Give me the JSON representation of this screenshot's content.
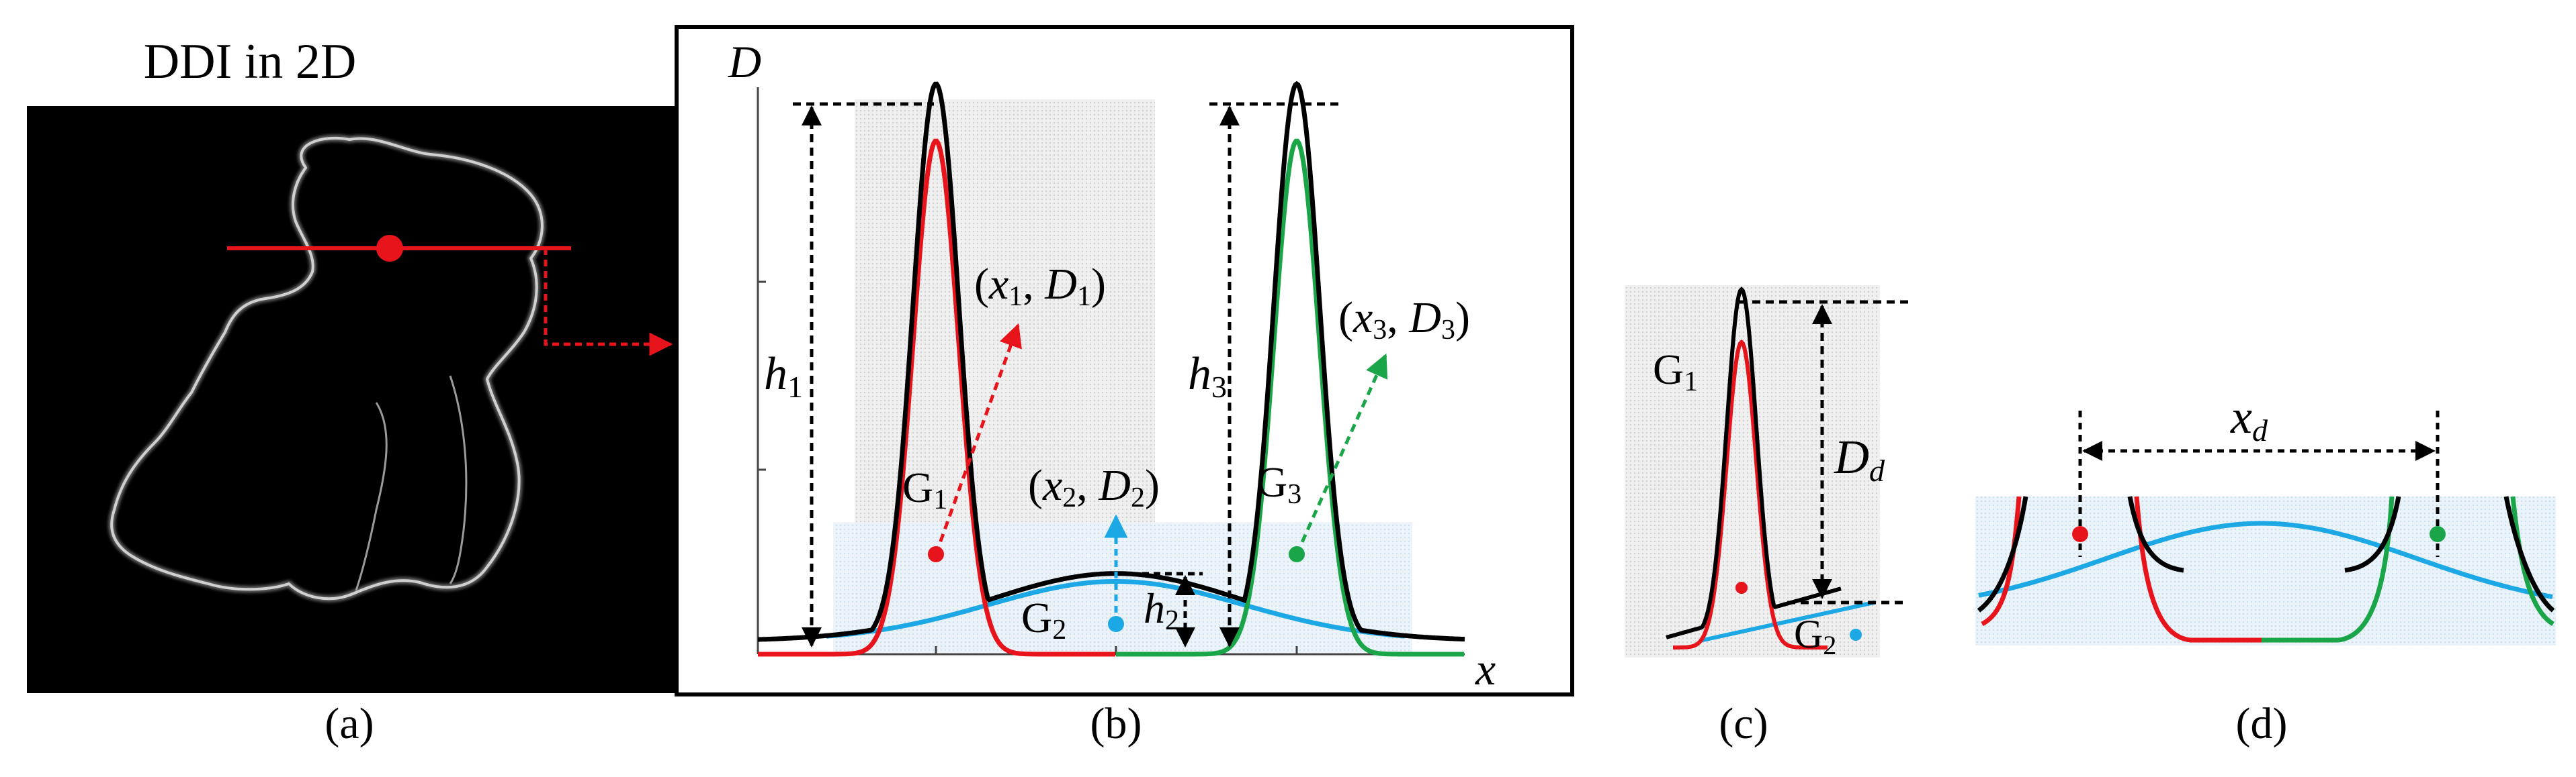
{
  "panels": {
    "a": {
      "title": "DDI in 2D",
      "caption": "(a)"
    },
    "b": {
      "caption": "(b)",
      "axis_y": "D",
      "axis_x": "x",
      "point1": "(x1, D1)",
      "point2": "(x2, D2)",
      "point3": "(x3, D3)",
      "p1": {
        "open": "(",
        "var1": "x",
        "sub1": "1",
        "sep": ", ",
        "var2": "D",
        "sub2": "1",
        "close": ")"
      },
      "p2": {
        "open": "(",
        "var1": "x",
        "sub1": "2",
        "sep": ", ",
        "var2": "D",
        "sub2": "2",
        "close": ")"
      },
      "p3": {
        "open": "(",
        "var1": "x",
        "sub1": "3",
        "sep": ", ",
        "var2": "D",
        "sub2": "3",
        "close": ")"
      },
      "g1": {
        "main": "G",
        "sub": "1"
      },
      "g2": {
        "main": "G",
        "sub": "2"
      },
      "g3": {
        "main": "G",
        "sub": "3"
      },
      "h1": {
        "main": "h",
        "sub": "1"
      },
      "h2": {
        "main": "h",
        "sub": "2"
      },
      "h3": {
        "main": "h",
        "sub": "3"
      }
    },
    "c": {
      "caption": "(c)",
      "g1": {
        "main": "G",
        "sub": "1"
      },
      "g2": {
        "main": "G",
        "sub": "2"
      },
      "dd": {
        "main": "D",
        "sub": "d"
      }
    },
    "d": {
      "caption": "(d)",
      "xd": {
        "main": "x",
        "sub": "d"
      }
    }
  },
  "colors": {
    "red": "#e8141c",
    "green": "#1aa648",
    "blue": "#1ca8e4",
    "black": "#000000",
    "grey_shade": "#e2e2e2",
    "blue_shade": "#e3eff7"
  }
}
